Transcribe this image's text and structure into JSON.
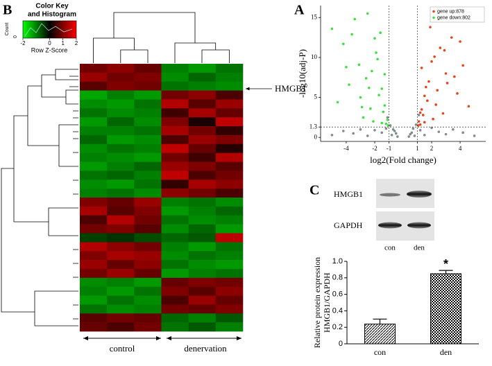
{
  "panel_labels": [
    "A",
    "B",
    "C"
  ],
  "heatmap_extras": {
    "key_title": [
      "Color Key",
      "and Histogram"
    ],
    "count_label": "Count",
    "count_tick": "0",
    "key_label": "Row Z-Score",
    "annotation": "HMGB1",
    "groups": [
      "control",
      "denervation"
    ]
  },
  "blot": {
    "proteins": [
      "HMGB1",
      "GAPDH"
    ],
    "lanes": [
      "con",
      "den"
    ]
  },
  "chart_data": [
    {
      "type": "heatmap",
      "zlim": [
        -2,
        2
      ],
      "zticks": [
        -2,
        0,
        1,
        2
      ],
      "colors": [
        "#00ff00",
        "#000000",
        "#ff0000"
      ],
      "values": [
        [
          0.9,
          1.1,
          0.8,
          -1.0,
          -1.2,
          -0.9
        ],
        [
          1.2,
          0.9,
          1.0,
          -1.1,
          -0.8,
          -1.0
        ],
        [
          0.7,
          1.0,
          0.9,
          -0.9,
          -1.0,
          -1.1
        ],
        [
          -1.3,
          -1.0,
          -1.2,
          0.9,
          1.1,
          0.6
        ],
        [
          -1.1,
          -1.2,
          -0.9,
          1.4,
          0.7,
          1.2
        ],
        [
          -0.9,
          -1.1,
          -1.0,
          0.5,
          1.3,
          0.8
        ],
        [
          -1.2,
          -0.8,
          -1.1,
          1.0,
          0.2,
          1.5
        ],
        [
          -1.0,
          -1.0,
          -0.9,
          1.3,
          0.9,
          0.4
        ],
        [
          -0.8,
          -1.2,
          -1.1,
          0.6,
          1.2,
          1.0
        ],
        [
          -1.1,
          -0.9,
          -1.0,
          1.5,
          0.8,
          0.3
        ],
        [
          -1.0,
          -1.1,
          -1.2,
          0.9,
          0.5,
          1.4
        ],
        [
          -1.2,
          -1.0,
          -0.8,
          1.2,
          1.0,
          0.7
        ],
        [
          -0.9,
          -0.8,
          -1.0,
          1.5,
          0.6,
          0.9
        ],
        [
          -1.1,
          -1.2,
          -0.9,
          0.4,
          1.3,
          1.1
        ],
        [
          -1.0,
          -0.9,
          -1.1,
          1.1,
          0.9,
          0.6
        ],
        [
          1.0,
          0.8,
          1.2,
          -1.0,
          -0.9,
          -1.1
        ],
        [
          1.3,
          0.7,
          1.0,
          -1.2,
          -1.0,
          -0.8
        ],
        [
          0.6,
          1.4,
          0.9,
          -0.9,
          -1.1,
          -1.0
        ],
        [
          0.9,
          1.0,
          0.7,
          -1.1,
          -0.8,
          -1.2
        ],
        [
          -0.5,
          -0.4,
          -0.6,
          -0.8,
          -0.7,
          1.5
        ],
        [
          1.4,
          1.1,
          0.9,
          -1.0,
          -1.2,
          -0.9
        ],
        [
          1.0,
          1.3,
          1.2,
          -1.1,
          -0.9,
          -1.0
        ],
        [
          1.2,
          0.8,
          1.1,
          -0.9,
          -1.1,
          -1.2
        ],
        [
          0.9,
          1.2,
          0.8,
          -1.2,
          -1.0,
          -0.9
        ],
        [
          -1.1,
          -1.0,
          -1.2,
          0.8,
          1.0,
          0.9
        ],
        [
          -1.0,
          -1.2,
          -0.9,
          1.0,
          0.7,
          1.1
        ],
        [
          -1.2,
          -0.9,
          -1.1,
          0.6,
          1.2,
          0.8
        ],
        [
          -0.9,
          -1.1,
          -1.0,
          0.9,
          0.8,
          1.0
        ],
        [
          0.7,
          0.9,
          0.8,
          -0.8,
          -1.0,
          -0.7
        ],
        [
          0.8,
          0.6,
          0.9,
          -0.9,
          -0.7,
          -1.0
        ]
      ]
    },
    {
      "type": "scatter",
      "x_label": "log2(Fold change)",
      "y_label": "-log10(adj-P)",
      "xlim": [
        -5.8,
        5.8
      ],
      "ylim": [
        -0.5,
        16.5
      ],
      "xticks": [
        -4,
        -2,
        -1,
        1,
        2,
        4
      ],
      "yticks": [
        0,
        1.3,
        5,
        10,
        15
      ],
      "vlines": [
        -1,
        1
      ],
      "hlines": [
        1.3
      ],
      "legend": "top-right",
      "series": [
        {
          "name": "gene up:878",
          "color": "#e8441a",
          "x": [
            1.1,
            1.3,
            1.5,
            1.2,
            1.8,
            2.0,
            2.3,
            2.6,
            1.4,
            1.6,
            3.0,
            3.4,
            2.8,
            1.9,
            2.2,
            3.8,
            4.2,
            1.05,
            1.7,
            2.5,
            3.1,
            4.6,
            2.1,
            1.3,
            3.6,
            2.9,
            1.5,
            4.0,
            2.4,
            1.2
          ],
          "y": [
            2.0,
            3.5,
            5.2,
            1.6,
            7.0,
            9.5,
            4.1,
            11.2,
            2.8,
            6.3,
            8.0,
            12.5,
            3.0,
            13.8,
            10.1,
            5.5,
            9.0,
            1.5,
            4.6,
            14.6,
            6.8,
            3.9,
            2.3,
            8.7,
            7.6,
            10.9,
            1.9,
            12.0,
            5.9,
            3.1
          ]
        },
        {
          "name": "gene down:802",
          "color": "#3de03d",
          "x": [
            -1.1,
            -1.3,
            -1.5,
            -1.2,
            -1.8,
            -2.0,
            -2.3,
            -2.6,
            -1.4,
            -1.6,
            -3.0,
            -3.4,
            -2.8,
            -1.9,
            -2.2,
            -3.8,
            -4.2,
            -1.05,
            -1.7,
            -2.5,
            -3.1,
            -4.6,
            -2.1,
            -1.3,
            -3.6,
            -2.9,
            -1.5,
            -4.0,
            -2.4,
            -5.0
          ],
          "y": [
            2.2,
            4.0,
            6.1,
            1.7,
            9.8,
            12.4,
            3.6,
            7.4,
            3.2,
            13.1,
            5.0,
            14.8,
            2.5,
            10.6,
            8.3,
            6.6,
            11.7,
            1.5,
            5.3,
            15.5,
            9.1,
            4.4,
            2.0,
            7.9,
            12.9,
            3.8,
            1.8,
            8.8,
            6.2,
            13.6
          ]
        },
        {
          "color": "#7f8c8c",
          "x": [
            -5,
            -4.2,
            -3.5,
            -3,
            -2.5,
            -2,
            -1.5,
            -1.2,
            -0.9,
            -0.7,
            -0.5,
            -0.4,
            0.4,
            0.5,
            0.7,
            0.9,
            1.2,
            1.5,
            2,
            2.5,
            3,
            3.5,
            4.2,
            5,
            -0.6,
            0.6,
            -1.1,
            1.1,
            -0.8,
            0.8
          ],
          "y": [
            0.3,
            0.8,
            0.5,
            1.0,
            0.2,
            0.9,
            0.6,
            1.1,
            1.5,
            1.0,
            0.5,
            0.1,
            0.1,
            0.4,
            1.1,
            1.6,
            0.9,
            0.3,
            1.2,
            0.7,
            0.4,
            1.0,
            0.6,
            0.2,
            0.8,
            0.6,
            2.5,
            2.8,
            0.3,
            0.2
          ]
        }
      ]
    },
    {
      "type": "bar",
      "y_label": [
        "Relative protein expression",
        "HMGB1/GAPDH"
      ],
      "categories": [
        "con",
        "den"
      ],
      "values": [
        0.24,
        0.85
      ],
      "errors": [
        0.06,
        0.04
      ],
      "patterns": [
        "hatch",
        "checker"
      ],
      "ylim": [
        0,
        1
      ],
      "yticks": [
        0,
        0.2,
        0.4,
        0.6,
        0.8,
        {
          "value": 1,
          "label": "1.0"
        }
      ],
      "annotations": [
        {
          "text": "*",
          "category": "den"
        }
      ]
    }
  ]
}
